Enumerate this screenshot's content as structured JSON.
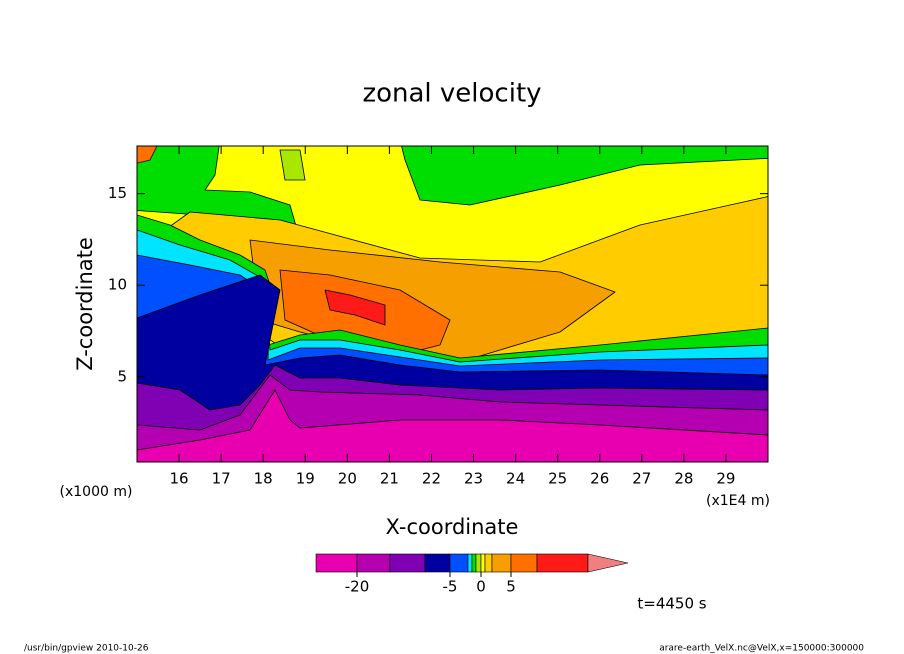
{
  "chart_data": {
    "type": "contour",
    "title": "zonal velocity",
    "x_label": "X-coordinate",
    "y_label": "Z-coordinate",
    "x_unit": "(x1E4 m)",
    "y_unit": "(x1000 m)",
    "xlim": [
      15,
      30
    ],
    "xticks": [
      16,
      17,
      18,
      19,
      20,
      21,
      22,
      23,
      24,
      25,
      26,
      27,
      28,
      29
    ],
    "ylim": [
      0.35,
      17.6
    ],
    "yticks": [
      5,
      10,
      15
    ],
    "colorbar": {
      "levels": [
        -20,
        -15,
        -10,
        -5,
        -2,
        -1,
        -0.5,
        0,
        0.5,
        1,
        5,
        10
      ],
      "colors": [
        "#e800b0",
        "#b400b0",
        "#8000b4",
        "#0000a0",
        "#0050ff",
        "#00e5ff",
        "#00dd00",
        "#a8e800",
        "#ffff00",
        "#ffcc00",
        "#f5a000",
        "#ff7000",
        "#ff1a1a",
        "#f08080"
      ],
      "ticks": [
        -20,
        -5,
        0,
        5
      ]
    },
    "annotation": "t=4450 s",
    "footer_left": "/usr/bin/gpview  2010-10-26",
    "footer_right": "arare-earth_VelX.nc@VelX,x=150000:300000"
  }
}
